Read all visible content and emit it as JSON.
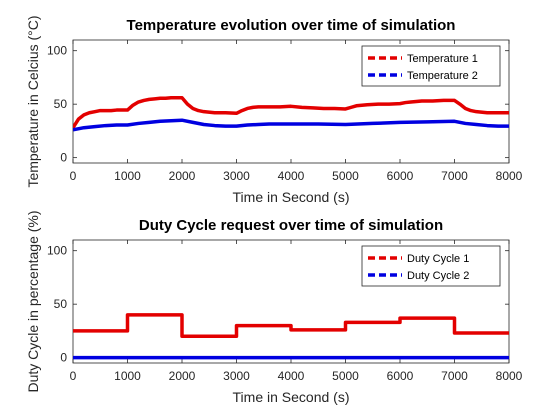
{
  "chart_data": [
    {
      "type": "line",
      "title": "Temperature evolution over time of simulation",
      "xlabel": "Time in Second (s)",
      "ylabel": "Temperature in Celcius (°C)",
      "xlim": [
        0,
        8000
      ],
      "ylim": [
        -5,
        110
      ],
      "xticks": [
        0,
        1000,
        2000,
        3000,
        4000,
        5000,
        6000,
        7000,
        8000
      ],
      "yticks": [
        0,
        50,
        100
      ],
      "grid": false,
      "legend_position": "top-right",
      "series": [
        {
          "name": "Temperature 1",
          "color": "#e30000",
          "style": "dashed",
          "x": [
            0,
            100,
            200,
            300,
            400,
            500,
            600,
            700,
            800,
            900,
            1000,
            1100,
            1200,
            1300,
            1400,
            1500,
            1600,
            1700,
            1800,
            1900,
            2000,
            2100,
            2200,
            2300,
            2400,
            2600,
            2800,
            3000,
            3100,
            3200,
            3300,
            3400,
            3600,
            3800,
            4000,
            4200,
            4400,
            4600,
            4800,
            5000,
            5100,
            5200,
            5300,
            5400,
            5600,
            5800,
            6000,
            6100,
            6200,
            6300,
            6400,
            6600,
            6800,
            7000,
            7100,
            7200,
            7300,
            7400,
            7600,
            7800,
            8000
          ],
          "values": [
            28,
            36,
            40,
            42,
            43,
            44,
            44,
            44,
            44.5,
            44.5,
            44.5,
            49,
            52,
            53.5,
            54.5,
            55,
            55.5,
            55.5,
            56,
            56,
            56,
            50,
            46,
            44,
            43,
            42,
            42,
            41.5,
            44,
            46,
            47,
            47.5,
            47.5,
            47.5,
            48,
            47,
            46.5,
            46,
            46,
            45.5,
            47,
            48.5,
            49,
            49.5,
            50,
            50,
            50.5,
            51.5,
            52,
            52.5,
            53,
            53,
            53.5,
            53.5,
            50,
            46,
            44,
            43,
            42,
            42,
            42
          ]
        },
        {
          "name": "Temperature 2",
          "color": "#0000e0",
          "style": "dashed",
          "x": [
            0,
            200,
            400,
            600,
            800,
            1000,
            1200,
            1400,
            1600,
            1800,
            2000,
            2200,
            2400,
            2600,
            2800,
            3000,
            3200,
            3400,
            3600,
            3800,
            4000,
            4500,
            5000,
            5500,
            6000,
            6500,
            7000,
            7200,
            7400,
            7600,
            7800,
            8000
          ],
          "values": [
            26,
            28,
            29,
            30,
            30.5,
            30.5,
            32,
            33,
            34,
            34.5,
            35,
            33,
            31,
            30,
            29.5,
            29.5,
            30.5,
            31,
            31.5,
            31.5,
            31.5,
            31.5,
            31,
            32,
            33,
            33.5,
            34,
            32,
            31,
            30,
            29.5,
            29.5
          ]
        }
      ]
    },
    {
      "type": "line",
      "title": "Duty Cycle request over time of simulation",
      "xlabel": "Time in Second (s)",
      "ylabel": "Duty Cycle in percentage (%)",
      "xlim": [
        0,
        8000
      ],
      "ylim": [
        -5,
        110
      ],
      "xticks": [
        0,
        1000,
        2000,
        3000,
        4000,
        5000,
        6000,
        7000,
        8000
      ],
      "yticks": [
        0,
        50,
        100
      ],
      "grid": false,
      "legend_position": "top-right",
      "series": [
        {
          "name": "Duty Cycle 1",
          "color": "#e30000",
          "style": "dashed",
          "x": [
            0,
            1000,
            1000,
            2000,
            2000,
            3000,
            3000,
            4000,
            4000,
            5000,
            5000,
            6000,
            6000,
            7000,
            7000,
            8000
          ],
          "values": [
            25,
            25,
            40,
            40,
            20,
            20,
            30,
            30,
            26,
            26,
            33,
            33,
            37,
            37,
            23,
            23
          ]
        },
        {
          "name": "Duty Cycle 2",
          "color": "#0000e0",
          "style": "dashed",
          "x": [
            0,
            8000
          ],
          "values": [
            0,
            0
          ]
        }
      ]
    }
  ]
}
